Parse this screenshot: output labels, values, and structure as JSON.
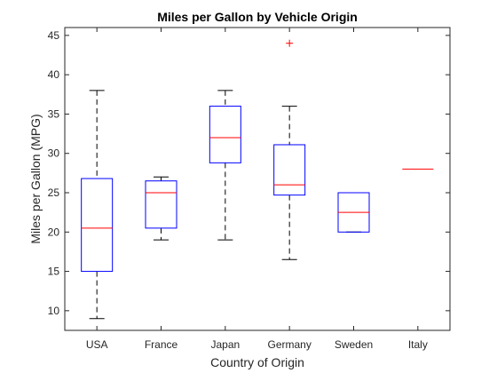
{
  "chart_data": {
    "type": "box",
    "title": "Miles per Gallon by Vehicle Origin",
    "xlabel": "Country of Origin",
    "ylabel": "Miles per Gallon (MPG)",
    "ylim": [
      7.5,
      46
    ],
    "yticks": [
      10,
      15,
      20,
      25,
      30,
      35,
      40,
      45
    ],
    "grid": false,
    "categories": [
      "USA",
      "France",
      "Japan",
      "Germany",
      "Sweden",
      "Italy"
    ],
    "boxes": [
      {
        "category": "USA",
        "whisker_low": 9,
        "q1": 15,
        "median": 20.5,
        "q3": 26.8,
        "whisker_high": 38,
        "outliers": []
      },
      {
        "category": "France",
        "whisker_low": 19,
        "q1": 20.5,
        "median": 25,
        "q3": 26.5,
        "whisker_high": 27,
        "outliers": []
      },
      {
        "category": "Japan",
        "whisker_low": 19,
        "q1": 28.8,
        "median": 32,
        "q3": 36,
        "whisker_high": 38,
        "outliers": []
      },
      {
        "category": "Germany",
        "whisker_low": 16.5,
        "q1": 24.7,
        "median": 26,
        "q3": 31.1,
        "whisker_high": 36,
        "outliers": [
          44
        ]
      },
      {
        "category": "Sweden",
        "whisker_low": 20,
        "q1": 20,
        "median": 22.5,
        "q3": 25,
        "whisker_high": 25,
        "outliers": []
      },
      {
        "category": "Italy",
        "whisker_low": 28,
        "q1": 28,
        "median": 28,
        "q3": 28,
        "whisker_high": 28,
        "outliers": []
      }
    ],
    "colors": {
      "box": "#0000ff",
      "median": "#ff0000",
      "whisker": "#000000",
      "outlier": "#ff0000",
      "axes": "#262626"
    }
  }
}
